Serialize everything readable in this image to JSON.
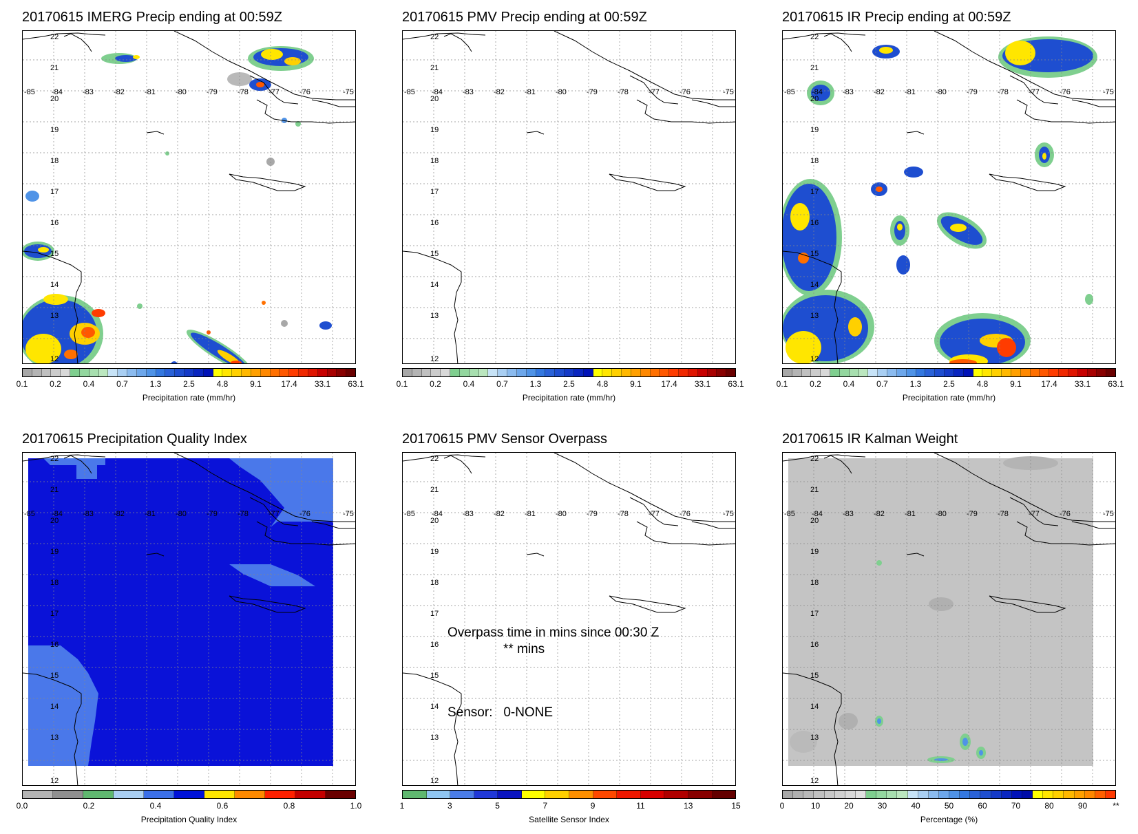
{
  "panels": [
    {
      "title": "20170615 IMERG Precip ending at 00:59Z",
      "cbar_label": "Precipitation rate (mm/hr)",
      "cbar_ticks": [
        "0.1",
        "0.2",
        "0.4",
        "0.7",
        "1.3",
        "2.5",
        "4.8",
        "9.1",
        "17.4",
        "33.1",
        "63.1"
      ],
      "cbar_colors": [
        "#a8a8a8",
        "#b4b4b4",
        "#c0c0c0",
        "#cccccc",
        "#d8d8d8",
        "#7fcf8f",
        "#93d79f",
        "#a7dfaf",
        "#bbe7bf",
        "#c7e3f7",
        "#a9cff3",
        "#8bbbef",
        "#6da7eb",
        "#4f93e7",
        "#3478e0",
        "#2a62d8",
        "#1e4ed0",
        "#143ac8",
        "#0a26c0",
        "#0012b8",
        "#ffff00",
        "#ffe600",
        "#ffd000",
        "#ffb800",
        "#ffa000",
        "#ff8800",
        "#ff7000",
        "#ff5800",
        "#ff3c00",
        "#f02800",
        "#e01400",
        "#c80000",
        "#a80000",
        "#880000",
        "#6a0000"
      ]
    },
    {
      "title": "20170615 PMV Precip ending at 00:59Z",
      "cbar_label": "Precipitation rate (mm/hr)",
      "cbar_ticks": [
        "0.1",
        "0.2",
        "0.4",
        "0.7",
        "1.3",
        "2.5",
        "4.8",
        "9.1",
        "17.4",
        "33.1",
        "63.1"
      ]
    },
    {
      "title": "20170615 IR Precip ending at 00:59Z",
      "cbar_label": "Precipitation rate (mm/hr)",
      "cbar_ticks": [
        "0.1",
        "0.2",
        "0.4",
        "0.7",
        "1.3",
        "2.5",
        "4.8",
        "9.1",
        "17.4",
        "33.1",
        "63.1"
      ]
    },
    {
      "title": "20170615 Precipitation Quality Index",
      "cbar_label": "Precipitation Quality Index",
      "cbar_ticks": [
        "0.0",
        "0.2",
        "0.4",
        "0.6",
        "0.8",
        "1.0"
      ],
      "cbar_colors": [
        "#b4b4b4",
        "#909090",
        "#5fb86f",
        "#a9cff3",
        "#3b6fe8",
        "#0012d8",
        "#ffe600",
        "#ff8a00",
        "#ff2000",
        "#c40000",
        "#6a0000"
      ]
    },
    {
      "title": "20170615 PMV Sensor Overpass",
      "cbar_label": "Satellite Sensor Index",
      "cbar_ticks": [
        "1",
        "3",
        "5",
        "7",
        "9",
        "11",
        "13",
        "15"
      ],
      "cbar_colors": [
        "#5fb86f",
        "#8fc6f2",
        "#4a7ce8",
        "#2038d8",
        "#0a14c0",
        "#ffff00",
        "#ffd000",
        "#ff9000",
        "#ff4800",
        "#f01800",
        "#d80000",
        "#b00000",
        "#880000",
        "#640000"
      ],
      "overlay_line1": "Overpass time in mins since 00:30 Z",
      "overlay_line2": "** mins",
      "overlay_sensor": "Sensor:   0-NONE"
    },
    {
      "title": "20170615 IR Kalman Weight",
      "cbar_label": "Percentage (%)",
      "cbar_ticks": [
        "0",
        "10",
        "20",
        "30",
        "40",
        "50",
        "60",
        "70",
        "80",
        "90",
        "**"
      ],
      "cbar_colors": [
        "#a8a8a8",
        "#b0b0b0",
        "#b8b8b8",
        "#c0c0c0",
        "#c8c8c8",
        "#d0d0d0",
        "#d8d8d8",
        "#e0e0e0",
        "#7fcf8f",
        "#93d79f",
        "#a7dfaf",
        "#bbe7bf",
        "#c7e3f7",
        "#a9cff3",
        "#8bbbef",
        "#6da7eb",
        "#4f93e7",
        "#3478e0",
        "#2a62d8",
        "#1e4ed0",
        "#143ac8",
        "#0a26c0",
        "#0012b8",
        "#000ca8",
        "#ffff00",
        "#ffe600",
        "#ffd000",
        "#ffb800",
        "#ffa000",
        "#ff8800",
        "#ff6000",
        "#ff3800"
      ]
    }
  ],
  "map_labels": {
    "lons": [
      "-85",
      "-84",
      "-83",
      "-82",
      "-81",
      "-80",
      "-79",
      "-78",
      "-77",
      "-76",
      "-75"
    ],
    "lats": [
      "22",
      "21",
      "20",
      "19",
      "18",
      "17",
      "16",
      "15",
      "14",
      "13",
      "12"
    ]
  },
  "colors": {
    "background": "#ffffff",
    "pqi_dark_blue": "#0a12d8",
    "pqi_light_blue": "#4a78ea",
    "kalman_gray": "#c4c4c4"
  }
}
